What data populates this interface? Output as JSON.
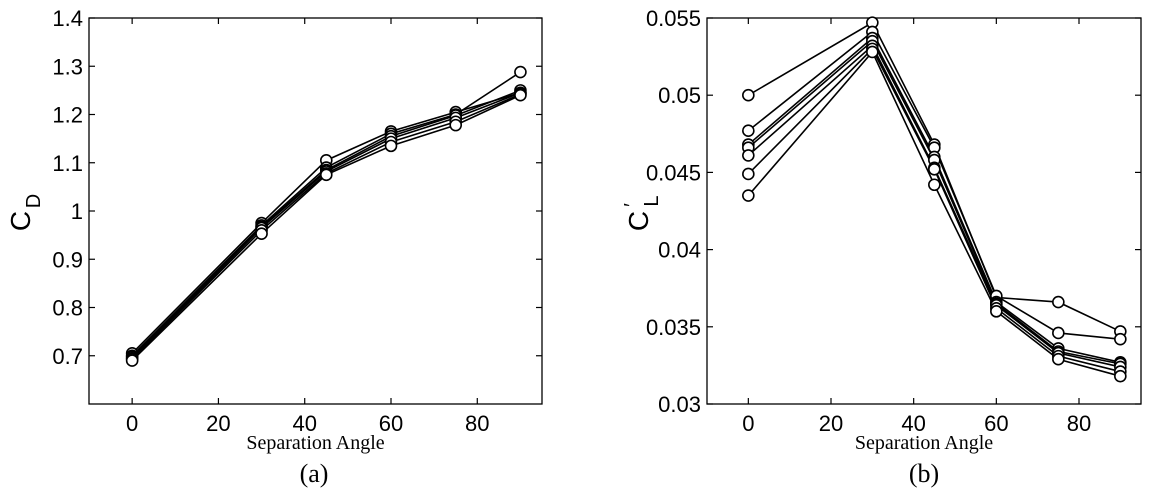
{
  "chart_data": [
    {
      "type": "line",
      "panel_label": "(a)",
      "xlabel": "Separation Angle",
      "ylabel_main": "C",
      "ylabel_sub": "D",
      "ylabel_prime": "",
      "xlim": [
        -10,
        95
      ],
      "ylim": [
        0.6,
        1.4
      ],
      "xticks": [
        0,
        20,
        40,
        60,
        80
      ],
      "yticks": [
        0.7,
        0.8,
        0.9,
        1.0,
        1.1,
        1.2,
        1.3,
        1.4
      ],
      "ytick_labels": [
        "0.7",
        "0.8",
        "0.9",
        "1",
        "1.1",
        "1.2",
        "1.3",
        "1.4"
      ],
      "x": [
        0,
        30,
        45,
        60,
        75,
        90
      ],
      "series": [
        {
          "values": [
            0.705,
            0.975,
            1.105,
            1.165,
            1.205,
            1.245
          ]
        },
        {
          "values": [
            0.7,
            0.97,
            1.09,
            1.16,
            1.2,
            1.288
          ]
        },
        {
          "values": [
            0.698,
            0.967,
            1.085,
            1.155,
            1.198,
            1.25
          ]
        },
        {
          "values": [
            0.695,
            0.965,
            1.082,
            1.15,
            1.193,
            1.245
          ]
        },
        {
          "values": [
            0.693,
            0.96,
            1.078,
            1.143,
            1.185,
            1.242
          ]
        },
        {
          "values": [
            0.69,
            0.953,
            1.075,
            1.135,
            1.178,
            1.24
          ]
        }
      ]
    },
    {
      "type": "line",
      "panel_label": "(b)",
      "xlabel": "Separation Angle",
      "ylabel_main": "C",
      "ylabel_sub": "L",
      "ylabel_prime": "′",
      "xlim": [
        -10,
        95
      ],
      "ylim": [
        0.03,
        0.055
      ],
      "xticks": [
        0,
        20,
        40,
        60,
        80
      ],
      "yticks": [
        0.03,
        0.035,
        0.04,
        0.045,
        0.05,
        0.055
      ],
      "ytick_labels": [
        "0.03",
        "0.035",
        "0.04",
        "0.045",
        "0.05",
        "0.055"
      ],
      "x": [
        0,
        30,
        45,
        60,
        75,
        90
      ],
      "series": [
        {
          "values": [
            0.05,
            0.0547,
            0.0468,
            0.0369,
            0.0366,
            0.0347
          ]
        },
        {
          "values": [
            0.0477,
            0.0541,
            0.0466,
            0.037,
            0.0346,
            0.0342
          ]
        },
        {
          "values": [
            0.0468,
            0.0537,
            0.046,
            0.0366,
            0.0336,
            0.0327
          ]
        },
        {
          "values": [
            0.0466,
            0.0535,
            0.0458,
            0.0365,
            0.0334,
            0.0326
          ]
        },
        {
          "values": [
            0.0461,
            0.0532,
            0.0453,
            0.0364,
            0.0333,
            0.0324
          ]
        },
        {
          "values": [
            0.0449,
            0.053,
            0.0452,
            0.0362,
            0.0331,
            0.0321
          ]
        },
        {
          "values": [
            0.0435,
            0.0528,
            0.0442,
            0.036,
            0.0329,
            0.0318
          ]
        }
      ]
    }
  ]
}
